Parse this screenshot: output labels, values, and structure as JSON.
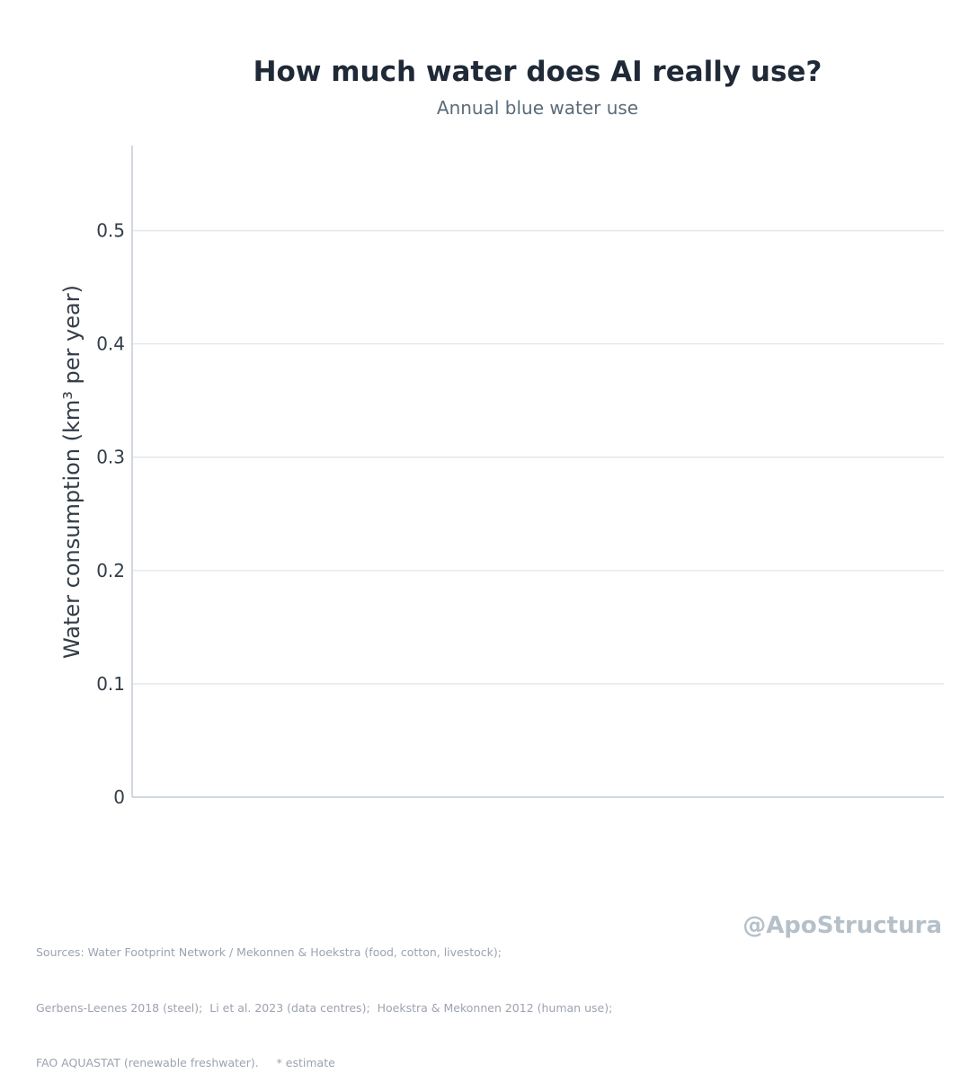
{
  "chart_data": {
    "type": "bar",
    "title": "How much water does AI really use?",
    "subtitle": "Annual blue water use",
    "ylabel": "Water consumption  (km³ per year)",
    "xlabel": "",
    "ylim": [
      0,
      0.575
    ],
    "yticks": [
      0,
      0.1,
      0.2,
      0.3,
      0.4,
      0.5
    ],
    "ytick_labels": [
      "0",
      "0.1",
      "0.2",
      "0.3",
      "0.4",
      "0.5"
    ],
    "categories": [],
    "values": [],
    "grid": "horizontal",
    "colors": {
      "grid": "#e5e7eb",
      "axis": "#c4ccd4",
      "tick_text": "#333d47",
      "label_text": "#333d47"
    }
  },
  "footer": {
    "sources_lines": [
      "Sources: Water Footprint Network / Mekonnen & Hoekstra (food, cotton, livestock);",
      "Gerbens-Leenes 2018 (steel);  Li et al. 2023 (data centres);  Hoekstra & Mekonnen 2012 (human use);",
      "FAO AQUASTAT (renewable freshwater).     * estimate"
    ],
    "watermark": "@ApoStructura"
  }
}
